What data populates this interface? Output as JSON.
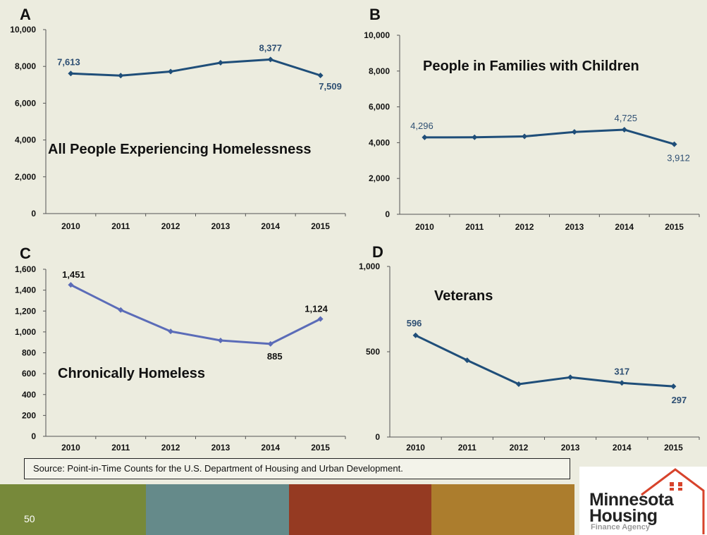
{
  "source_text": "Source:  Point-in-Time Counts for the U.S. Department of Housing and Urban Development.",
  "page_number": "50",
  "logo": {
    "line1": "Minnesota",
    "line2": "Housing",
    "line3": "Finance Agency"
  },
  "colors": {
    "background": "#ececdf",
    "line_dark": "#1f4e79",
    "line_light": "#5b6cb8",
    "band1": "#77893a",
    "band2": "#658a8a",
    "band3": "#953a22",
    "band4": "#ac7d2d",
    "logo_red": "#d7432b"
  },
  "chart_data": [
    {
      "id": "A",
      "type": "line",
      "title": "All People Experiencing Homelessness",
      "x": [
        "2010",
        "2011",
        "2012",
        "2013",
        "2014",
        "2015"
      ],
      "values": [
        7613,
        7500,
        7720,
        8200,
        8377,
        7509
      ],
      "ylim": [
        0,
        10000
      ],
      "yticks": [
        "0",
        "2,000",
        "4,000",
        "6,000",
        "8,000",
        "10,000"
      ],
      "data_labels": [
        {
          "index": 0,
          "text": "7,613"
        },
        {
          "index": 4,
          "text": "8,377"
        },
        {
          "index": 5,
          "text": "7,509"
        }
      ],
      "grid": false
    },
    {
      "id": "B",
      "type": "line",
      "title": "People in Families with Children",
      "x": [
        "2010",
        "2011",
        "2012",
        "2013",
        "2014",
        "2015"
      ],
      "values": [
        4296,
        4300,
        4350,
        4600,
        4725,
        3912
      ],
      "ylim": [
        0,
        10000
      ],
      "yticks": [
        "0",
        "2,000",
        "4,000",
        "6,000",
        "8,000",
        "10,000"
      ],
      "data_labels": [
        {
          "index": 0,
          "text": "4,296"
        },
        {
          "index": 4,
          "text": "4,725"
        },
        {
          "index": 5,
          "text": "3,912"
        }
      ],
      "grid": false
    },
    {
      "id": "C",
      "type": "line",
      "title": "Chronically Homeless",
      "x": [
        "2010",
        "2011",
        "2012",
        "2013",
        "2014",
        "2015"
      ],
      "values": [
        1451,
        1210,
        1005,
        918,
        885,
        1124
      ],
      "ylim": [
        0,
        1600
      ],
      "yticks": [
        "0",
        "200",
        "400",
        "600",
        "800",
        "1,000",
        "1,200",
        "1,400",
        "1,600"
      ],
      "data_labels": [
        {
          "index": 0,
          "text": "1,451"
        },
        {
          "index": 4,
          "text": "885"
        },
        {
          "index": 5,
          "text": "1,124"
        }
      ],
      "grid": false
    },
    {
      "id": "D",
      "type": "line",
      "title": "Veterans",
      "x": [
        "2010",
        "2011",
        "2012",
        "2013",
        "2014",
        "2015"
      ],
      "values": [
        596,
        450,
        310,
        350,
        317,
        297
      ],
      "ylim": [
        0,
        1000
      ],
      "yticks": [
        "0",
        "500",
        "1,000"
      ],
      "data_labels": [
        {
          "index": 0,
          "text": "596"
        },
        {
          "index": 4,
          "text": "317"
        },
        {
          "index": 5,
          "text": "297"
        }
      ],
      "grid": false
    }
  ]
}
